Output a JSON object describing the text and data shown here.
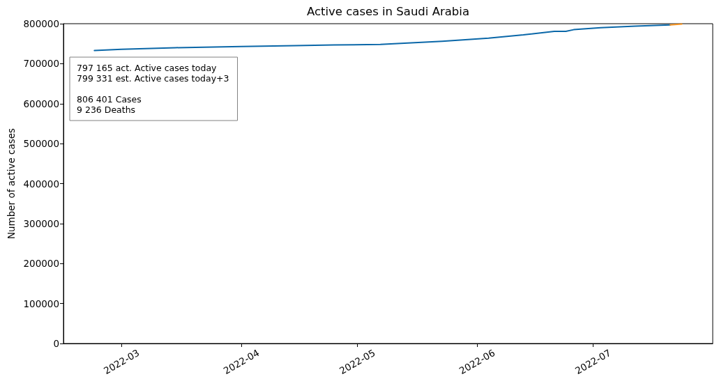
{
  "chart_data": {
    "type": "line",
    "title": "Active cases in Saudi Arabia",
    "ylabel": "Number of active cases",
    "annotations": [
      "797 165 act. Active cases today\n799 331 est. Active cases today+3",
      "806 401 Cases\n9 236 Deaths"
    ],
    "series": [
      {
        "color": "#0a67a8",
        "x": [
          "2022-02-22",
          "2022-03-01",
          "2022-03-15",
          "2022-04-01",
          "2022-04-15",
          "2022-04-25",
          "2022-05-07",
          "2022-05-23",
          "2022-06-04",
          "2022-06-13",
          "2022-06-21",
          "2022-06-24",
          "2022-06-26",
          "2022-07-03",
          "2022-07-12",
          "2022-07-21"
        ],
        "values": [
          733000,
          736000,
          740000,
          743000,
          745000,
          747000,
          748000,
          756000,
          764000,
          772000,
          781000,
          781000,
          785000,
          790000,
          794000,
          797000
        ]
      },
      {
        "color": "#f5921e",
        "x": [
          "2022-07-21",
          "2022-07-24"
        ],
        "values": [
          797000,
          799000
        ]
      }
    ],
    "xlim": [
      "2022-02-14",
      "2022-08-01"
    ],
    "xticks": [
      "2022-03",
      "2022-04",
      "2022-05",
      "2022-06",
      "2022-07"
    ],
    "ylim": [
      0,
      800000
    ],
    "yticks": [
      0,
      100000,
      200000,
      300000,
      400000,
      500000,
      600000,
      700000,
      800000
    ]
  }
}
